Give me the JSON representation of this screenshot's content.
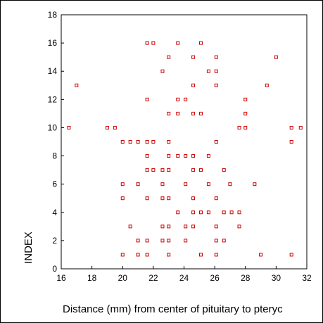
{
  "chart_data": {
    "type": "scatter",
    "xlabel": "Distance (mm) from center of pituitary to pteryc",
    "ylabel": "INDEX",
    "xlim": [
      16,
      32
    ],
    "ylim": [
      0,
      18
    ],
    "x_ticks": [
      "16",
      "18",
      "20",
      "22",
      "24",
      "26",
      "28",
      "30",
      "32"
    ],
    "y_ticks": [
      "0",
      "2",
      "4",
      "6",
      "8",
      "10",
      "12",
      "14",
      "16",
      "18"
    ],
    "x_tick_values": [
      16,
      18,
      20,
      22,
      24,
      26,
      28,
      30,
      32
    ],
    "y_tick_values": [
      0,
      2,
      4,
      6,
      8,
      10,
      12,
      14,
      16,
      18
    ],
    "grid": false,
    "marker": "hollow-square",
    "marker_color": "#cc0000",
    "points": [
      [
        21.6,
        16
      ],
      [
        22,
        16
      ],
      [
        23.6,
        16
      ],
      [
        25.1,
        16
      ],
      [
        23,
        15
      ],
      [
        24.6,
        15
      ],
      [
        26.1,
        15
      ],
      [
        30,
        15
      ],
      [
        22.6,
        14
      ],
      [
        25.6,
        14
      ],
      [
        26.1,
        14
      ],
      [
        17,
        13
      ],
      [
        24.6,
        13
      ],
      [
        26.1,
        13
      ],
      [
        29.4,
        13
      ],
      [
        21.6,
        12
      ],
      [
        23.6,
        12
      ],
      [
        24.1,
        12
      ],
      [
        28,
        12
      ],
      [
        23,
        11
      ],
      [
        23.6,
        11
      ],
      [
        24.6,
        11
      ],
      [
        25.1,
        11
      ],
      [
        28,
        11
      ],
      [
        16.5,
        10
      ],
      [
        19,
        10
      ],
      [
        19.5,
        10
      ],
      [
        27.6,
        10
      ],
      [
        28,
        10
      ],
      [
        31,
        10
      ],
      [
        31.6,
        10
      ],
      [
        20,
        9
      ],
      [
        20.5,
        9
      ],
      [
        21,
        9
      ],
      [
        21.6,
        9
      ],
      [
        22,
        9
      ],
      [
        23,
        9
      ],
      [
        26.1,
        9
      ],
      [
        31,
        9
      ],
      [
        21.6,
        8
      ],
      [
        23,
        8
      ],
      [
        23.6,
        8
      ],
      [
        24.1,
        8
      ],
      [
        24.6,
        8
      ],
      [
        25.6,
        8
      ],
      [
        21.6,
        7
      ],
      [
        22,
        7
      ],
      [
        22.6,
        7
      ],
      [
        23,
        7
      ],
      [
        24.6,
        7
      ],
      [
        25.1,
        7
      ],
      [
        26.6,
        7
      ],
      [
        20,
        6
      ],
      [
        21,
        6
      ],
      [
        22.6,
        6
      ],
      [
        24.1,
        6
      ],
      [
        25.6,
        6
      ],
      [
        27,
        6
      ],
      [
        28.6,
        6
      ],
      [
        20,
        5
      ],
      [
        21.6,
        5
      ],
      [
        22.6,
        5
      ],
      [
        23,
        5
      ],
      [
        24.6,
        5
      ],
      [
        26.1,
        5
      ],
      [
        23.6,
        4
      ],
      [
        24.6,
        4
      ],
      [
        25.1,
        4
      ],
      [
        25.6,
        4
      ],
      [
        26.6,
        4
      ],
      [
        27.1,
        4
      ],
      [
        27.6,
        4
      ],
      [
        20.5,
        3
      ],
      [
        22.6,
        3
      ],
      [
        23,
        3
      ],
      [
        24.1,
        3
      ],
      [
        24.6,
        3
      ],
      [
        26.1,
        3
      ],
      [
        27.6,
        3
      ],
      [
        21,
        2
      ],
      [
        21.6,
        2
      ],
      [
        22.6,
        2
      ],
      [
        23,
        2
      ],
      [
        24.1,
        2
      ],
      [
        26.1,
        2
      ],
      [
        26.6,
        2
      ],
      [
        20,
        1
      ],
      [
        21,
        1
      ],
      [
        21.6,
        1
      ],
      [
        23,
        1
      ],
      [
        25.1,
        1
      ],
      [
        26.1,
        1
      ],
      [
        29,
        1
      ],
      [
        31,
        1
      ]
    ]
  }
}
